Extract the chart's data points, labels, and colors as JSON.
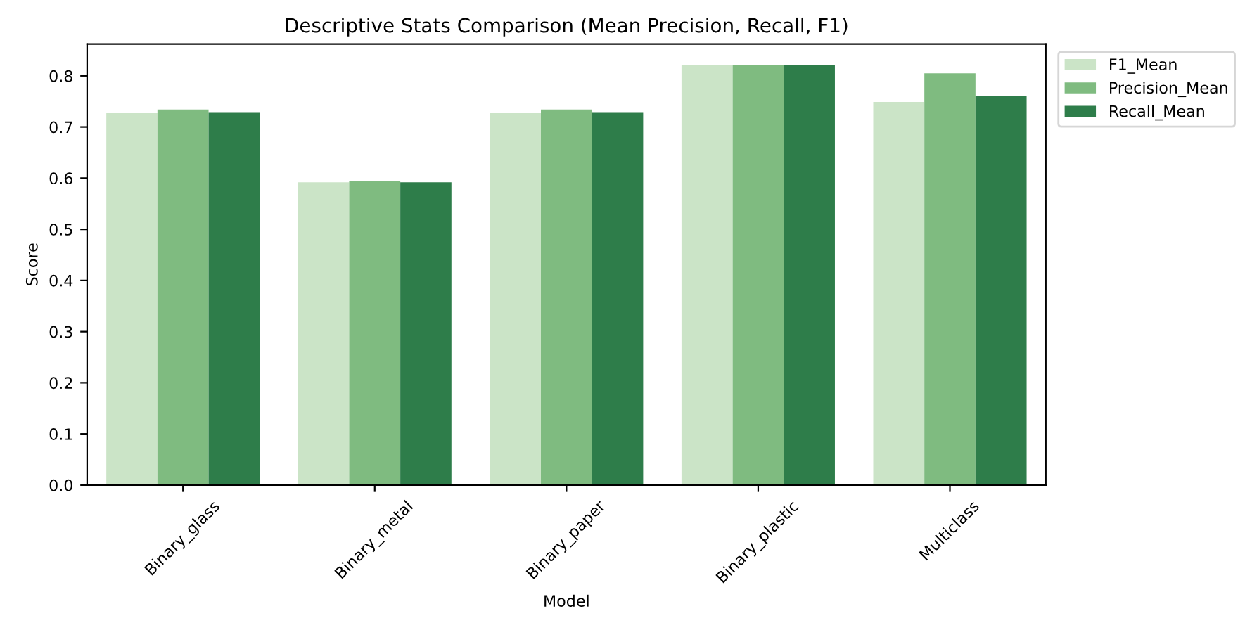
{
  "chart_data": {
    "type": "bar",
    "title": "Descriptive Stats Comparison (Mean Precision, Recall, F1)",
    "xlabel": "Model",
    "ylabel": "Score",
    "categories": [
      "Binary_glass",
      "Binary_metal",
      "Binary_paper",
      "Binary_plastic",
      "Multiclass"
    ],
    "series": [
      {
        "name": "F1_Mean",
        "color": "#cbe4c7",
        "values": [
          0.727,
          0.592,
          0.727,
          0.821,
          0.749
        ]
      },
      {
        "name": "Precision_Mean",
        "color": "#7fbb80",
        "values": [
          0.734,
          0.594,
          0.734,
          0.821,
          0.805
        ]
      },
      {
        "name": "Recall_Mean",
        "color": "#2e7d4a",
        "values": [
          0.729,
          0.592,
          0.729,
          0.821,
          0.76
        ]
      }
    ],
    "ylim": [
      0,
      0.862
    ],
    "yticks": [
      {
        "value": 0,
        "label": "0.0"
      },
      0.1,
      0.2,
      0.3,
      0.4,
      0.5,
      0.6,
      0.7,
      0.8
    ],
    "legend": "top right",
    "grid": false
  }
}
